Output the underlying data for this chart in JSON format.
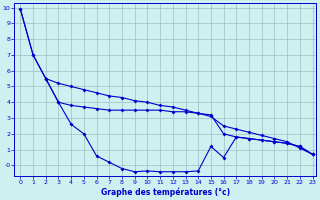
{
  "xlabel": "Graphe des températures (°c)",
  "background_color": "#cff0f0",
  "grid_color": "#9bbfbf",
  "line_color": "#0000cc",
  "xlim_min": -0.5,
  "xlim_max": 23.3,
  "ylim_min": -0.7,
  "ylim_max": 10.3,
  "xticks": [
    0,
    1,
    2,
    3,
    4,
    5,
    6,
    7,
    8,
    9,
    10,
    11,
    12,
    13,
    14,
    15,
    16,
    17,
    18,
    19,
    20,
    21,
    22,
    23
  ],
  "yticks": [
    0,
    1,
    2,
    3,
    4,
    5,
    6,
    7,
    8,
    9,
    10
  ],
  "line1_x": [
    0,
    1,
    2,
    3,
    4,
    5,
    6,
    7,
    8,
    9,
    10,
    11,
    12,
    13,
    14,
    15,
    16,
    17,
    18,
    19,
    20,
    21,
    22,
    23
  ],
  "line1_y": [
    9.9,
    7.0,
    5.5,
    5.2,
    5.0,
    4.8,
    4.6,
    4.4,
    4.3,
    4.1,
    4.0,
    3.8,
    3.7,
    3.5,
    3.3,
    3.1,
    2.5,
    2.3,
    2.1,
    1.9,
    1.7,
    1.5,
    1.1,
    0.7
  ],
  "line2_x": [
    0,
    1,
    2,
    3,
    4,
    5,
    6,
    7,
    8,
    9,
    10,
    11,
    12,
    13,
    14,
    15,
    16,
    17,
    18,
    19,
    20,
    21,
    22,
    23
  ],
  "line2_y": [
    9.9,
    7.0,
    5.5,
    4.0,
    3.8,
    3.7,
    3.6,
    3.5,
    3.5,
    3.5,
    3.5,
    3.5,
    3.4,
    3.4,
    3.3,
    3.2,
    2.0,
    1.8,
    1.7,
    1.6,
    1.5,
    1.4,
    1.2,
    0.7
  ],
  "line3_x": [
    2,
    3,
    4,
    5,
    6,
    7,
    8,
    9,
    10,
    11,
    12,
    13,
    14,
    15,
    16,
    17,
    18,
    19,
    20,
    21,
    22,
    23
  ],
  "line3_y": [
    5.5,
    4.0,
    2.6,
    2.0,
    0.6,
    0.2,
    -0.2,
    -0.4,
    -0.35,
    -0.4,
    -0.4,
    -0.4,
    -0.35,
    1.2,
    0.5,
    1.8,
    1.7,
    1.6,
    1.5,
    1.4,
    1.2,
    0.7
  ]
}
